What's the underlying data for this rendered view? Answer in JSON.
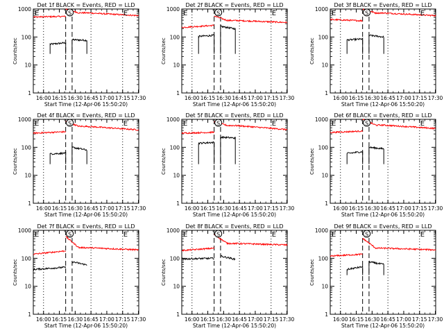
{
  "chart_data": [
    {
      "type": "line",
      "title": "Det 1f BLACK = Events, RED = LLD",
      "xlabel": "Start Time (12-Apr-06 15:50:20)",
      "ylabel": "Counts/sec",
      "x_ticks": [
        "16:00",
        "16:15",
        "16:30",
        "16:45",
        "17:00",
        "17:15",
        "17:30"
      ],
      "y_ticks": [
        "1",
        "10",
        "100",
        "1000"
      ],
      "y_scale": "log",
      "ylim": [
        1,
        1000
      ],
      "markers": {
        "start": "E",
        "sun": "S",
        "end": "E"
      },
      "series": [
        {
          "color": "#000000",
          "segments": [
            {
              "x": [
                15.9,
                30.7
              ],
              "y": [
                55,
                62
              ]
            },
            {
              "x": [
                36.8,
                50.8
              ],
              "y": [
                80,
                76
              ]
            }
          ],
          "dropdown": true
        },
        {
          "color": "#ff0000",
          "segments": [
            {
              "x": [
                0,
                30.7
              ],
              "y": [
                520,
                545
              ]
            },
            {
              "x": [
                30.7,
                50.8
              ],
              "y": [
                1000,
                730
              ]
            },
            {
              "x": [
                50.8,
                100
              ],
              "y": [
                730,
                580
              ]
            }
          ]
        }
      ]
    },
    {
      "type": "line",
      "title": "Det 2f BLACK = Events, RED = LLD",
      "xlabel": "Start Time (12-Apr-06 15:50:20)",
      "ylabel": "Counts/sec",
      "x_ticks": [
        "16:00",
        "16:15",
        "16:30",
        "16:45",
        "17:00",
        "17:15",
        "17:30"
      ],
      "y_ticks": [
        "1",
        "10",
        "100",
        "1000"
      ],
      "y_scale": "log",
      "ylim": [
        1,
        1000
      ],
      "markers": {
        "start": "E",
        "sun": "S",
        "end": "E"
      },
      "series": [
        {
          "color": "#000000",
          "segments": [
            {
              "x": [
                15.9,
                30.7
              ],
              "y": [
                105,
                115
              ]
            },
            {
              "x": [
                36.8,
                50.8
              ],
              "y": [
                240,
                195
              ]
            }
          ],
          "dropdown": true
        },
        {
          "color": "#ff0000",
          "segments": [
            {
              "x": [
                0,
                30.7
              ],
              "y": [
                220,
                260
              ]
            },
            {
              "x": [
                30.7,
                50.8
              ],
              "y": [
                560,
                390
              ]
            },
            {
              "x": [
                50.8,
                100
              ],
              "y": [
                390,
                330
              ]
            }
          ]
        }
      ]
    },
    {
      "type": "line",
      "title": "Det 3f BLACK = Events, RED = LLD",
      "xlabel": "Start Time (12-Apr-06 15:50:20)",
      "ylabel": "Counts/sec",
      "x_ticks": [
        "16:00",
        "16:15",
        "16:30",
        "16:45",
        "17:00",
        "17:15",
        "17:30"
      ],
      "y_ticks": [
        "1",
        "10",
        "100",
        "1000"
      ],
      "y_scale": "log",
      "ylim": [
        1,
        1000
      ],
      "markers": {
        "start": "E",
        "sun": "S",
        "end": "E"
      },
      "series": [
        {
          "color": "#000000",
          "segments": [
            {
              "x": [
                15.9,
                30.7
              ],
              "y": [
                78,
                85
              ]
            },
            {
              "x": [
                36.8,
                50.8
              ],
              "y": [
                115,
                100
              ]
            }
          ],
          "dropdown": true
        },
        {
          "color": "#ff0000",
          "segments": [
            {
              "x": [
                0,
                30.7
              ],
              "y": [
                420,
                380
              ]
            },
            {
              "x": [
                30.7,
                50.8
              ],
              "y": [
                1000,
                720
              ]
            },
            {
              "x": [
                50.8,
                100
              ],
              "y": [
                720,
                580
              ]
            }
          ]
        }
      ]
    },
    {
      "type": "line",
      "title": "Det 4f BLACK = Events, RED = LLD",
      "xlabel": "Start Time (12-Apr-06 15:50:20)",
      "ylabel": "Counts/sec",
      "x_ticks": [
        "16:00",
        "16:15",
        "16:30",
        "16:45",
        "17:00",
        "17:15",
        "17:30"
      ],
      "y_ticks": [
        "1",
        "10",
        "100",
        "1000"
      ],
      "y_scale": "log",
      "ylim": [
        1,
        1000
      ],
      "markers": {
        "start": "E",
        "sun": "S",
        "end": "E"
      },
      "series": [
        {
          "color": "#000000",
          "segments": [
            {
              "x": [
                15.9,
                30.7
              ],
              "y": [
                58,
                62
              ]
            },
            {
              "x": [
                36.8,
                50.8
              ],
              "y": [
                100,
                80
              ]
            }
          ],
          "dropdown": true
        },
        {
          "color": "#ff0000",
          "segments": [
            {
              "x": [
                0,
                30.7
              ],
              "y": [
                320,
                360
              ]
            },
            {
              "x": [
                30.7,
                50.8
              ],
              "y": [
                850,
                560
              ]
            },
            {
              "x": [
                50.8,
                100
              ],
              "y": [
                560,
                420
              ]
            }
          ]
        }
      ]
    },
    {
      "type": "line",
      "title": "Det 5f BLACK = Events, RED = LLD",
      "xlabel": "Start Time (12-Apr-06 15:50:20)",
      "ylabel": "Counts/sec",
      "x_ticks": [
        "16:00",
        "16:15",
        "16:30",
        "16:45",
        "17:00",
        "17:15",
        "17:30"
      ],
      "y_ticks": [
        "1",
        "10",
        "100",
        "1000"
      ],
      "y_scale": "log",
      "ylim": [
        1,
        1000
      ],
      "markers": {
        "start": "E",
        "sun": "S",
        "end": "E"
      },
      "series": [
        {
          "color": "#000000",
          "segments": [
            {
              "x": [
                15.9,
                30.7
              ],
              "y": [
                140,
                150
              ]
            },
            {
              "x": [
                36.8,
                50.8
              ],
              "y": [
                230,
                215
              ]
            }
          ],
          "dropdown": true
        },
        {
          "color": "#ff0000",
          "segments": [
            {
              "x": [
                0,
                30.7
              ],
              "y": [
                320,
                345
              ]
            },
            {
              "x": [
                30.7,
                50.8
              ],
              "y": [
                820,
                600
              ]
            },
            {
              "x": [
                50.8,
                100
              ],
              "y": [
                600,
                430
              ]
            }
          ]
        }
      ]
    },
    {
      "type": "line",
      "title": "Det 6f BLACK = Events, RED = LLD",
      "xlabel": "Start Time (12-Apr-06 15:50:20)",
      "ylabel": "Counts/sec",
      "x_ticks": [
        "16:00",
        "16:15",
        "16:30",
        "16:45",
        "17:00",
        "17:15",
        "17:30"
      ],
      "y_ticks": [
        "1",
        "10",
        "100",
        "1000"
      ],
      "y_scale": "log",
      "ylim": [
        1,
        1000
      ],
      "markers": {
        "start": "E",
        "sun": "S",
        "end": "E"
      },
      "series": [
        {
          "color": "#000000",
          "segments": [
            {
              "x": [
                15.9,
                30.7
              ],
              "y": [
                60,
                70
              ]
            },
            {
              "x": [
                36.8,
                50.8
              ],
              "y": [
                100,
                88
              ]
            }
          ],
          "dropdown": true
        },
        {
          "color": "#ff0000",
          "segments": [
            {
              "x": [
                0,
                30.7
              ],
              "y": [
                340,
                380
              ]
            },
            {
              "x": [
                30.7,
                50.8
              ],
              "y": [
                1000,
                620
              ]
            },
            {
              "x": [
                50.8,
                100
              ],
              "y": [
                620,
                470
              ]
            }
          ]
        }
      ]
    },
    {
      "type": "line",
      "title": "Det 7f BLACK = Events, RED = LLD",
      "xlabel": "Start Time (12-Apr-06 15:50:20)",
      "ylabel": "Counts/sec",
      "x_ticks": [
        "16:00",
        "16:15",
        "16:30",
        "16:45",
        "17:00",
        "17:15",
        "17:30"
      ],
      "y_ticks": [
        "1",
        "10",
        "100",
        "1000"
      ],
      "y_scale": "log",
      "ylim": [
        1,
        1000
      ],
      "markers": {
        "start": "E",
        "sun": "S",
        "end": "E"
      },
      "series": [
        {
          "color": "#000000",
          "segments": [
            {
              "x": [
                0,
                30.7
              ],
              "y": [
                40,
                48
              ]
            },
            {
              "x": [
                36.8,
                50.8
              ],
              "y": [
                75,
                58
              ]
            }
          ],
          "dropdown": false
        },
        {
          "color": "#ff0000",
          "segments": [
            {
              "x": [
                0,
                30.7
              ],
              "y": [
                140,
                185
              ]
            },
            {
              "x": [
                30.7,
                50.8
              ],
              "y": [
                600,
                240
              ]
            },
            {
              "x": [
                50.8,
                100
              ],
              "y": [
                240,
                200
              ]
            }
          ]
        }
      ]
    },
    {
      "type": "line",
      "title": "Det 8f BLACK = Events, RED = LLD",
      "xlabel": "Start Time (12-Apr-06 15:50:20)",
      "ylabel": "Counts/sec",
      "x_ticks": [
        "16:00",
        "16:15",
        "16:30",
        "16:45",
        "17:00",
        "17:15",
        "17:30"
      ],
      "y_ticks": [
        "1",
        "10",
        "100",
        "1000"
      ],
      "y_scale": "log",
      "ylim": [
        1,
        1000
      ],
      "markers": {
        "start": "E",
        "sun": "S",
        "end": "E"
      },
      "series": [
        {
          "color": "#000000",
          "segments": [
            {
              "x": [
                0,
                30.7
              ],
              "y": [
                95,
                100
              ]
            },
            {
              "x": [
                36.8,
                50.8
              ],
              "y": [
                120,
                92
              ]
            }
          ],
          "dropdown": false
        },
        {
          "color": "#ff0000",
          "segments": [
            {
              "x": [
                0,
                30.7
              ],
              "y": [
                190,
                230
              ]
            },
            {
              "x": [
                30.7,
                50.8
              ],
              "y": [
                700,
                340
              ]
            },
            {
              "x": [
                50.8,
                100
              ],
              "y": [
                340,
                300
              ]
            }
          ]
        }
      ]
    },
    {
      "type": "line",
      "title": "Det 9f BLACK = Events, RED = LLD",
      "xlabel": "Start Time (12-Apr-06 15:50:20)",
      "ylabel": "Counts/sec",
      "x_ticks": [
        "16:00",
        "16:15",
        "16:30",
        "16:45",
        "17:00",
        "17:15",
        "17:30"
      ],
      "y_ticks": [
        "1",
        "10",
        "100",
        "1000"
      ],
      "y_scale": "log",
      "ylim": [
        1,
        1000
      ],
      "markers": {
        "start": "E",
        "sun": "S",
        "end": "E"
      },
      "series": [
        {
          "color": "#000000",
          "segments": [
            {
              "x": [
                15.9,
                30.7
              ],
              "y": [
                40,
                50
              ]
            },
            {
              "x": [
                36.8,
                50.8
              ],
              "y": [
                75,
                60
              ]
            }
          ],
          "dropdown": true
        },
        {
          "color": "#ff0000",
          "segments": [
            {
              "x": [
                0,
                30.7
              ],
              "y": [
                120,
                140
              ]
            },
            {
              "x": [
                30.7,
                50.8
              ],
              "y": [
                520,
                230
              ]
            },
            {
              "x": [
                50.8,
                100
              ],
              "y": [
                230,
                200
              ]
            }
          ]
        }
      ]
    }
  ],
  "x_range_minutes": [
    0,
    100
  ],
  "vertical_lines": {
    "dotted_minutes": [
      9.7,
      54.7,
      84.7
    ],
    "dashed_minutes": [
      30.7,
      36.8
    ]
  }
}
